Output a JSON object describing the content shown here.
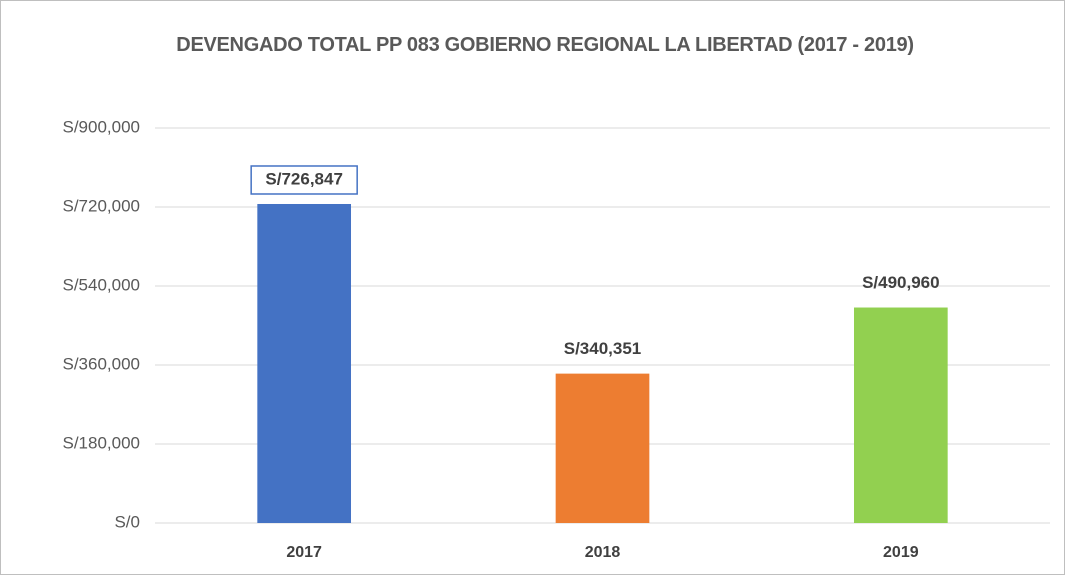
{
  "chart_data": {
    "type": "bar",
    "title": "DEVENGADO TOTAL PP 083 GOBIERNO REGIONAL LA LIBERTAD (2017 - 2019)",
    "categories": [
      "2017",
      "2018",
      "2019"
    ],
    "values": [
      726847,
      340351,
      490960
    ],
    "value_labels": [
      "S/726,847",
      "S/340,351",
      "S/490,960"
    ],
    "colors": [
      "#4472c4",
      "#ed7d31",
      "#92d050"
    ],
    "ylim": [
      0,
      900000
    ],
    "yticks": [
      {
        "value": 0,
        "label": "S/0"
      },
      {
        "value": 180000,
        "label": "S/180,000"
      },
      {
        "value": 360000,
        "label": "S/360,000"
      },
      {
        "value": 540000,
        "label": "S/540,000"
      },
      {
        "value": 720000,
        "label": "S/720,000"
      },
      {
        "value": 900000,
        "label": "S/900,000"
      }
    ],
    "grid": true
  }
}
